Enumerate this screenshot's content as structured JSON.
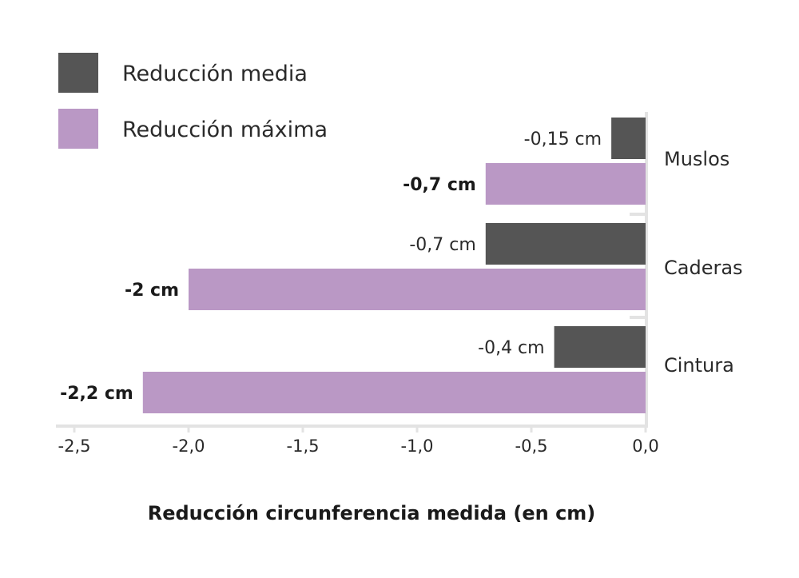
{
  "chart_data": {
    "type": "bar",
    "orientation": "horizontal",
    "categories": [
      "Muslos",
      "Caderas",
      "Cintura"
    ],
    "series": [
      {
        "name": "Reducción media",
        "values": [
          -0.15,
          -0.7,
          -0.4
        ],
        "labels": [
          "-0,15 cm",
          "-0,7 cm",
          "-0,4 cm"
        ],
        "color": "#555555",
        "label_bold": false
      },
      {
        "name": "Reducción máxima",
        "values": [
          -0.7,
          -2.0,
          -2.2
        ],
        "labels": [
          "-0,7 cm",
          "-2 cm",
          "-2,2 cm"
        ],
        "color": "#ba98c5",
        "label_bold": true
      }
    ],
    "xlabel": "Reducción circunferencia medida (en cm)",
    "ylabel": "",
    "title": "",
    "xlim": [
      -2.5,
      0.0
    ],
    "xticks": [
      -2.5,
      -2.0,
      -1.5,
      -1.0,
      -0.5,
      0.0
    ],
    "xtick_labels": [
      "-2,5",
      "-2,0",
      "-1,5",
      "-1,0",
      "-0,5",
      "0,0"
    ],
    "legend_position": "top-left",
    "grid": false,
    "axis_color": "#e3e3e3"
  }
}
